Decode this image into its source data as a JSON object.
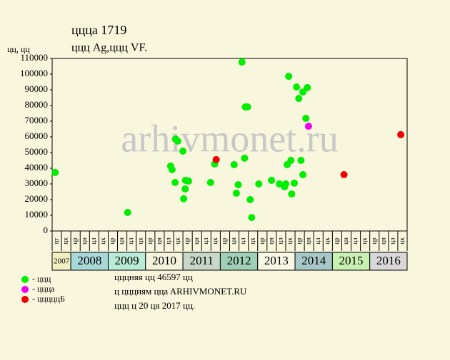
{
  "chart_data": {
    "type": "scatter",
    "title": "ццца 1719",
    "subtitle": "ццц Ag,ццц VF.",
    "y_label": "цц, цц",
    "watermark": "arhivmonet.ru",
    "xlim": [
      2007.5,
      2017
    ],
    "ylim": [
      0,
      110000
    ],
    "yticks": [
      0,
      10000,
      20000,
      30000,
      40000,
      50000,
      60000,
      70000,
      80000,
      90000,
      100000,
      110000
    ],
    "categories": [
      "цт",
      "цк",
      "цр",
      "цн",
      "цл",
      "цк",
      "цр",
      "цн",
      "цл",
      "цк",
      "цр",
      "цн",
      "цл",
      "цк",
      "цр",
      "цн",
      "цл",
      "цк",
      "цр",
      "цн",
      "цл",
      "цк",
      "цр",
      "цн",
      "цл",
      "цк",
      "цр",
      "цн",
      "цл",
      "цк",
      "цр",
      "цн",
      "цл",
      "цк",
      "цр",
      "цн",
      "цл",
      "цк"
    ],
    "years": [
      "2007",
      "2008",
      "2009",
      "2010",
      "2011",
      "2012",
      "2013",
      "2014",
      "2015",
      "2016"
    ],
    "year_colors": [
      "#f0f0c0",
      "#a8d8d8",
      "#b8ecd8",
      "#f4f4dc",
      "#c8d8c8",
      "#a0d0b8",
      "#f8f8e4",
      "#a8c8c8",
      "#c8f0b0",
      "#d8d8d8"
    ],
    "series": [
      {
        "name": "- ццц",
        "color": "#00ee00",
        "x": [
          2007.58,
          2009.52,
          2010.67,
          2010.71,
          2010.8,
          2010.86,
          2010.79,
          2011.0,
          2011.02,
          2011.06,
          2011.07,
          2011.15,
          2011.74,
          2011.85,
          2012.37,
          2012.43,
          2012.48,
          2012.58,
          2012.65,
          2012.67,
          2012.73,
          2012.8,
          2012.84,
          2013.03,
          2013.37,
          2013.58,
          2013.72,
          2013.75,
          2013.79,
          2013.83,
          2013.89,
          2013.91,
          2013.98,
          2014.04,
          2014.1,
          2014.16,
          2014.21,
          2014.21,
          2014.29,
          2014.33
        ],
        "values": [
          37300,
          11800,
          41400,
          39100,
          58600,
          57300,
          30900,
          50900,
          20500,
          26800,
          32300,
          31800,
          30900,
          42700,
          42300,
          24100,
          29500,
          107700,
          46400,
          79100,
          79100,
          20000,
          8600,
          30000,
          32300,
          30000,
          28200,
          30000,
          42300,
          98600,
          45000,
          23600,
          30500,
          91800,
          84500,
          45000,
          88600,
          35900,
          71800,
          91400
        ]
      },
      {
        "name": "- ццца",
        "color": "#ee00ee",
        "x": [
          2014.36
        ],
        "values": [
          66800
        ]
      },
      {
        "name": "- цццццБ",
        "color": "#ee0000",
        "x": [
          2011.89,
          2015.31,
          2016.83
        ],
        "values": [
          45500,
          35900,
          61400
        ]
      }
    ],
    "notes": [
      "цццняя цц 46597 цц",
      "ц ццциям ццa ARHIVMONET.RU",
      "ццц ц 20 ця 2017 цц."
    ]
  }
}
